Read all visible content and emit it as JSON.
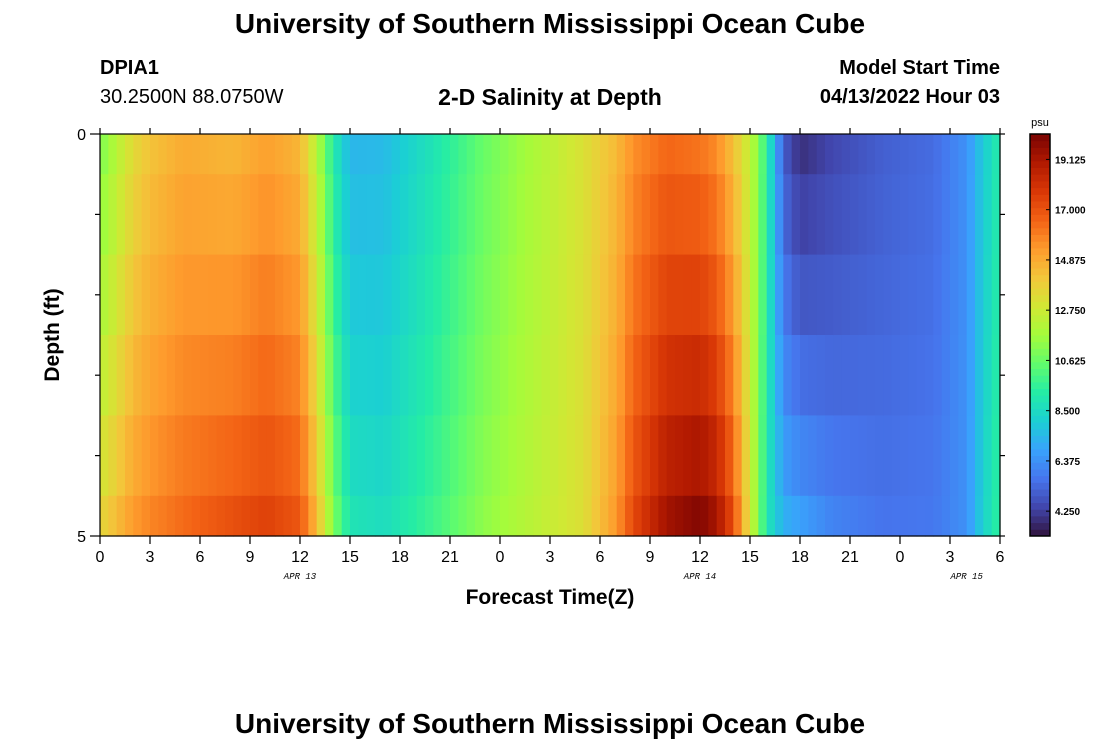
{
  "page": {
    "title": "University of Southern Mississippi Ocean Cube",
    "footer_title": "University of Southern Mississippi Ocean Cube",
    "station_id": "DPIA1",
    "station_coords": "30.2500N  88.0750W",
    "plot_title": "2-D Salinity at Depth",
    "model_start_label": "Model Start Time",
    "model_start_value": "04/13/2022 Hour 03"
  },
  "chart_data": {
    "type": "heatmap",
    "title": "2-D Salinity at Depth",
    "xlabel": "Forecast Time(Z)",
    "ylabel": "Depth (ft)",
    "x_tick_labels": [
      "0",
      "3",
      "6",
      "9",
      "12",
      "15",
      "18",
      "21",
      "0",
      "3",
      "6",
      "9",
      "12",
      "15",
      "18",
      "21",
      "0",
      "3",
      "6"
    ],
    "x_hours": [
      0,
      3,
      6,
      9,
      12,
      15,
      18,
      21,
      24,
      27,
      30,
      33,
      36,
      39,
      42,
      45,
      48,
      51,
      54
    ],
    "xlim": [
      0,
      54
    ],
    "date_labels": [
      {
        "text": "APR 13",
        "hour": 12
      },
      {
        "text": "APR 14",
        "hour": 36
      },
      {
        "text": "APR 15",
        "hour": 52
      }
    ],
    "y_tick_labels": [
      "0",
      "5"
    ],
    "ylim": [
      0,
      5
    ],
    "depth_rows": [
      0,
      1,
      2,
      3,
      4,
      5
    ],
    "colorbar": {
      "unit": "psu",
      "range": [
        3.2,
        20.2
      ],
      "tick_values": [
        19.125,
        17.0,
        14.875,
        12.75,
        10.625,
        8.5,
        6.375,
        4.25
      ],
      "tick_labels": [
        "19.125",
        "17.000",
        "14.875",
        "12.750",
        "10.625",
        "8.500",
        "6.375",
        "4.250"
      ],
      "colormap": [
        "#30123b",
        "#4145ab",
        "#4675ed",
        "#39a2fc",
        "#1bcfd4",
        "#24eca6",
        "#61fc6c",
        "#a4fc3b",
        "#d1e834",
        "#f3c63a",
        "#fe9b2d",
        "#f36315",
        "#d93806",
        "#b11901",
        "#7a0402"
      ]
    },
    "salinity_profile": {
      "hours": [
        0,
        1,
        2,
        3,
        5,
        8,
        10,
        12,
        13,
        14,
        15,
        17,
        20,
        23,
        26,
        29,
        31,
        32,
        34,
        36,
        37,
        38,
        39,
        40,
        41,
        42,
        44,
        47,
        50,
        52,
        53,
        54
      ],
      "surface": [
        11.0,
        12.2,
        13.5,
        14.2,
        14.9,
        14.6,
        15.2,
        14.6,
        12.2,
        9.2,
        7.4,
        7.5,
        8.9,
        10.6,
        11.9,
        13.2,
        14.5,
        15.6,
        16.5,
        16.2,
        15.7,
        14.3,
        12.5,
        9.5,
        5.0,
        3.9,
        4.5,
        5.1,
        5.4,
        6.4,
        8.0,
        9.3
      ],
      "bottom": [
        13.5,
        14.4,
        15.3,
        15.8,
        16.4,
        17.1,
        17.5,
        16.9,
        14.5,
        11.0,
        8.9,
        8.6,
        9.8,
        11.3,
        12.3,
        13.3,
        15.4,
        17.3,
        19.3,
        20.0,
        19.2,
        17.1,
        13.0,
        9.0,
        7.2,
        6.8,
        6.0,
        5.6,
        5.7,
        6.4,
        8.2,
        9.6
      ]
    }
  }
}
